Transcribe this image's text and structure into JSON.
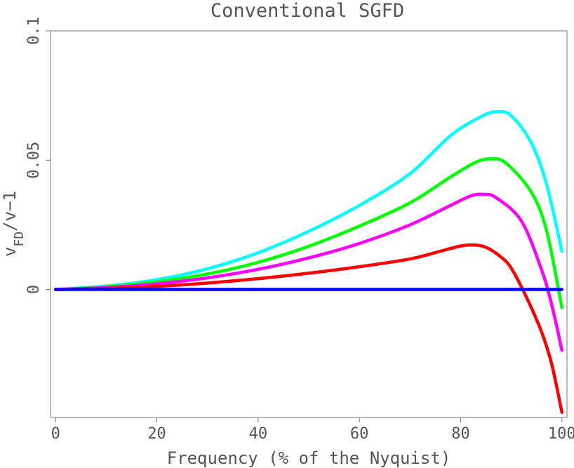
{
  "chart_data": {
    "type": "line",
    "title": "Conventional SGFD",
    "xlabel": "Frequency (% of the Nyquist)",
    "ylabel_main": "v",
    "ylabel_sub": "FD",
    "ylabel_rest": "/v−1",
    "xlim": [
      -1,
      101
    ],
    "ylim": [
      -0.0495,
      0.1
    ],
    "xticks": [
      0,
      20,
      40,
      60,
      80,
      100
    ],
    "xtick_labels": [
      "0",
      "20",
      "40",
      "60",
      "80",
      "100"
    ],
    "yticks": [
      0,
      0.05,
      0.1
    ],
    "ytick_labels": [
      "0",
      "0.05",
      "0.1"
    ],
    "grid": false,
    "series": [
      {
        "color": "#00ffff",
        "points": [
          [
            0,
            0
          ],
          [
            10,
            0.0013
          ],
          [
            20,
            0.0038
          ],
          [
            30,
            0.008
          ],
          [
            40,
            0.0142
          ],
          [
            50,
            0.0225
          ],
          [
            60,
            0.0325
          ],
          [
            70,
            0.0448
          ],
          [
            78,
            0.0595
          ],
          [
            84,
            0.0668
          ],
          [
            87,
            0.0687
          ],
          [
            90,
            0.0672
          ],
          [
            94,
            0.0565
          ],
          [
            97,
            0.0405
          ],
          [
            100,
            0.0148
          ]
        ]
      },
      {
        "color": "#00ff00",
        "points": [
          [
            0,
            0
          ],
          [
            10,
            0.001
          ],
          [
            20,
            0.003
          ],
          [
            30,
            0.006
          ],
          [
            40,
            0.0105
          ],
          [
            50,
            0.0167
          ],
          [
            60,
            0.0245
          ],
          [
            70,
            0.0335
          ],
          [
            78,
            0.0435
          ],
          [
            83,
            0.0492
          ],
          [
            86,
            0.0505
          ],
          [
            89,
            0.0488
          ],
          [
            94,
            0.0375
          ],
          [
            97,
            0.0225
          ],
          [
            100,
            -0.007
          ]
        ]
      },
      {
        "color": "#ff00ff",
        "points": [
          [
            0,
            0
          ],
          [
            10,
            0.0007
          ],
          [
            20,
            0.0022
          ],
          [
            30,
            0.0045
          ],
          [
            40,
            0.0078
          ],
          [
            50,
            0.0122
          ],
          [
            60,
            0.0178
          ],
          [
            70,
            0.025
          ],
          [
            78,
            0.0325
          ],
          [
            82,
            0.0362
          ],
          [
            84.5,
            0.0368
          ],
          [
            87,
            0.0355
          ],
          [
            92,
            0.0265
          ],
          [
            96,
            0.0075
          ],
          [
            98,
            -0.006
          ],
          [
            100,
            -0.0235
          ]
        ]
      },
      {
        "color": "#ff0000",
        "points": [
          [
            0,
            0
          ],
          [
            10,
            0.0004
          ],
          [
            20,
            0.0012
          ],
          [
            30,
            0.0025
          ],
          [
            40,
            0.0042
          ],
          [
            50,
            0.0063
          ],
          [
            60,
            0.0088
          ],
          [
            70,
            0.0118
          ],
          [
            76,
            0.0148
          ],
          [
            80,
            0.0168
          ],
          [
            82.5,
            0.0172
          ],
          [
            85,
            0.0163
          ],
          [
            88,
            0.0125
          ],
          [
            90,
            0.0082
          ],
          [
            93,
            -0.003
          ],
          [
            96,
            -0.0165
          ],
          [
            98,
            -0.029
          ],
          [
            100,
            -0.0475
          ]
        ]
      },
      {
        "color": "#0000ff",
        "points": [
          [
            0,
            0
          ],
          [
            100,
            0
          ]
        ]
      }
    ]
  }
}
